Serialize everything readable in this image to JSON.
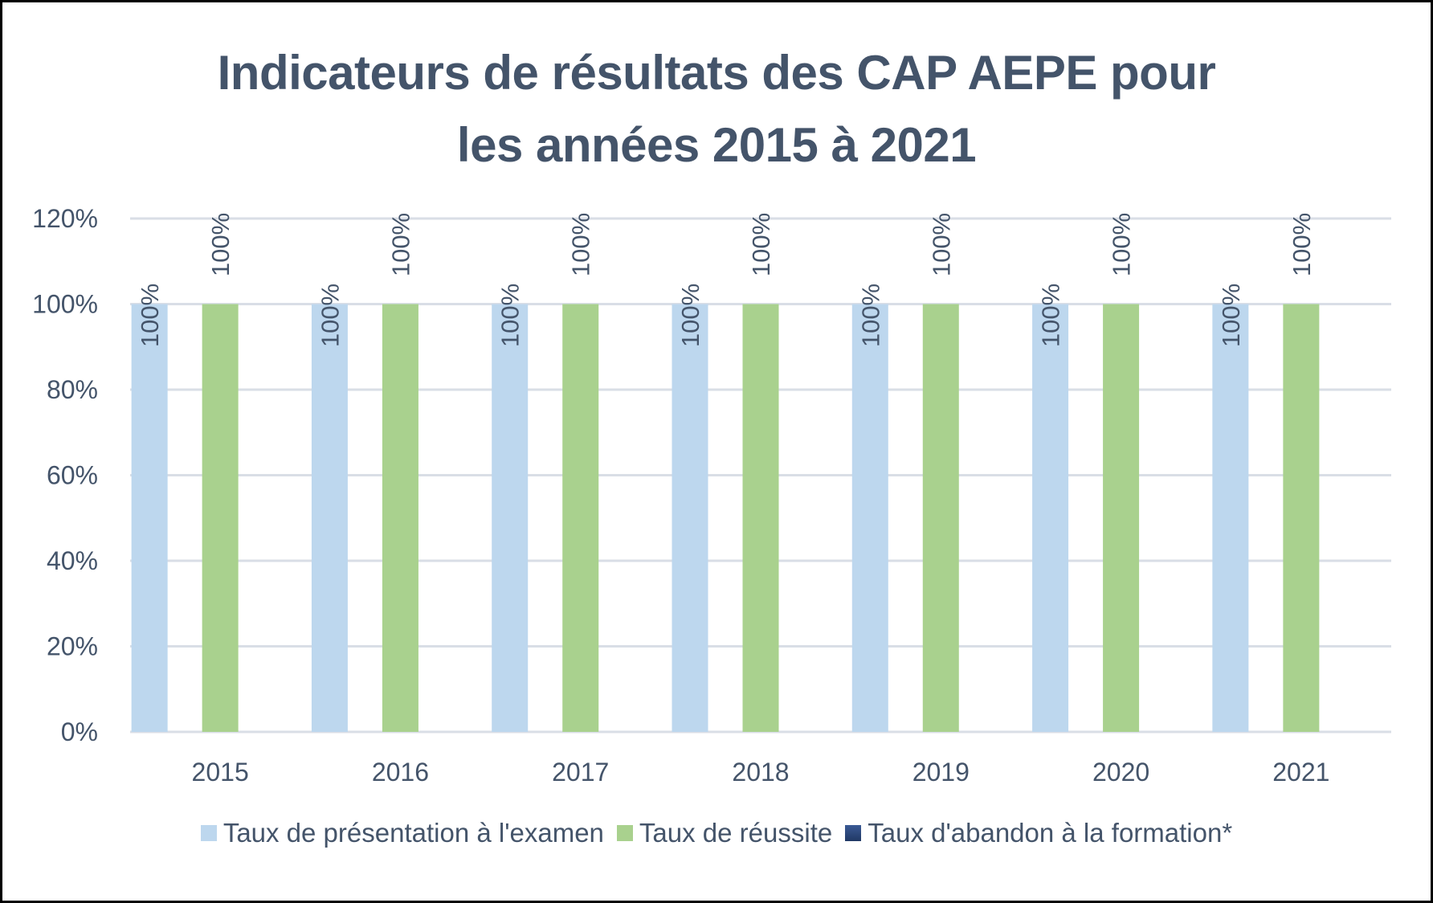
{
  "chart_data": {
    "type": "bar",
    "title": "Indicateurs de résultats des CAP AEPE pour les années 2015 à 2021",
    "title_lines": [
      "Indicateurs de résultats des CAP AEPE pour",
      "les années 2015 à 2021"
    ],
    "categories": [
      "2015",
      "2016",
      "2017",
      "2018",
      "2019",
      "2020",
      "2021"
    ],
    "series": [
      {
        "name": "Taux de présentation à l'examen",
        "color": "#bdd7ee",
        "values": [
          100,
          100,
          100,
          100,
          100,
          100,
          100
        ],
        "labels": [
          "100%",
          "100%",
          "100%",
          "100%",
          "100%",
          "100%",
          "100%"
        ]
      },
      {
        "name": "Taux de réussite",
        "color": "#a9d18e",
        "values": [
          100,
          100,
          100,
          100,
          100,
          100,
          100
        ],
        "labels": [
          "100%",
          "100%",
          "100%",
          "100%",
          "100%",
          "100%",
          "100%"
        ]
      },
      {
        "name": "Taux d'abandon à la formation*",
        "color": "#203864",
        "values": [
          0,
          0,
          0,
          0,
          0,
          0,
          0
        ],
        "labels": []
      }
    ],
    "yticks": [
      0,
      20,
      40,
      60,
      80,
      100,
      120
    ],
    "ytick_labels": [
      "0%",
      "20%",
      "40%",
      "60%",
      "80%",
      "100%",
      "120%"
    ],
    "ylim": [
      0,
      120
    ],
    "xlabel": "",
    "ylabel": "",
    "grid": true,
    "legend_position": "bottom",
    "data_label_orientation": "vertical",
    "colors": {
      "text": "#44546a",
      "grid": "#d9dee6",
      "frame": "#000000"
    }
  }
}
